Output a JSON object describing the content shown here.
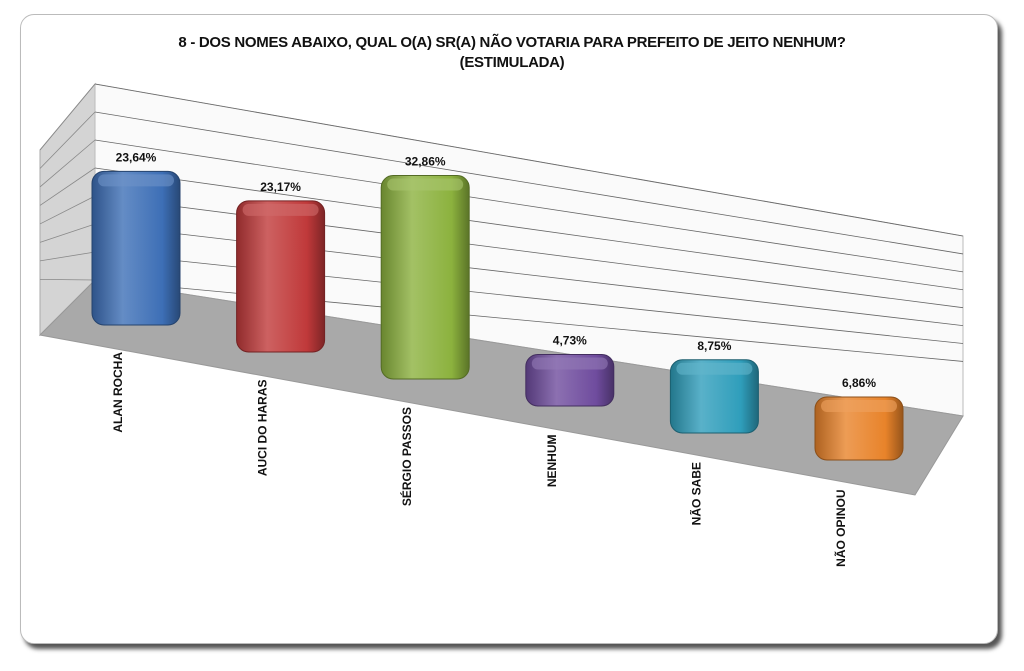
{
  "chart_data": {
    "type": "bar",
    "title": "8 - DOS NOMES ABAIXO, QUAL O(A) SR(A) NÃO VOTARIA PARA PREFEITO DE JEITO NENHUM?",
    "subtitle": "(ESTIMULADA)",
    "categories": [
      "ALAN ROCHA",
      "AUCI DO HARAS",
      "SÉRGIO PASSOS",
      "NENHUM",
      "NÃO SABE",
      "NÃO OPINOU"
    ],
    "values": [
      23.64,
      23.17,
      32.86,
      4.73,
      8.75,
      6.86
    ],
    "data_labels": [
      "23,64%",
      "23,17%",
      "32,86%",
      "4,73%",
      "8,75%",
      "6,86%"
    ],
    "colors": [
      "#3d6fb6",
      "#c0393a",
      "#8cb23e",
      "#6f4c9e",
      "#2f9ebb",
      "#e8832a"
    ],
    "xlabel": "",
    "ylabel": "",
    "grid": true,
    "legend": "none",
    "style": "3d-column"
  }
}
